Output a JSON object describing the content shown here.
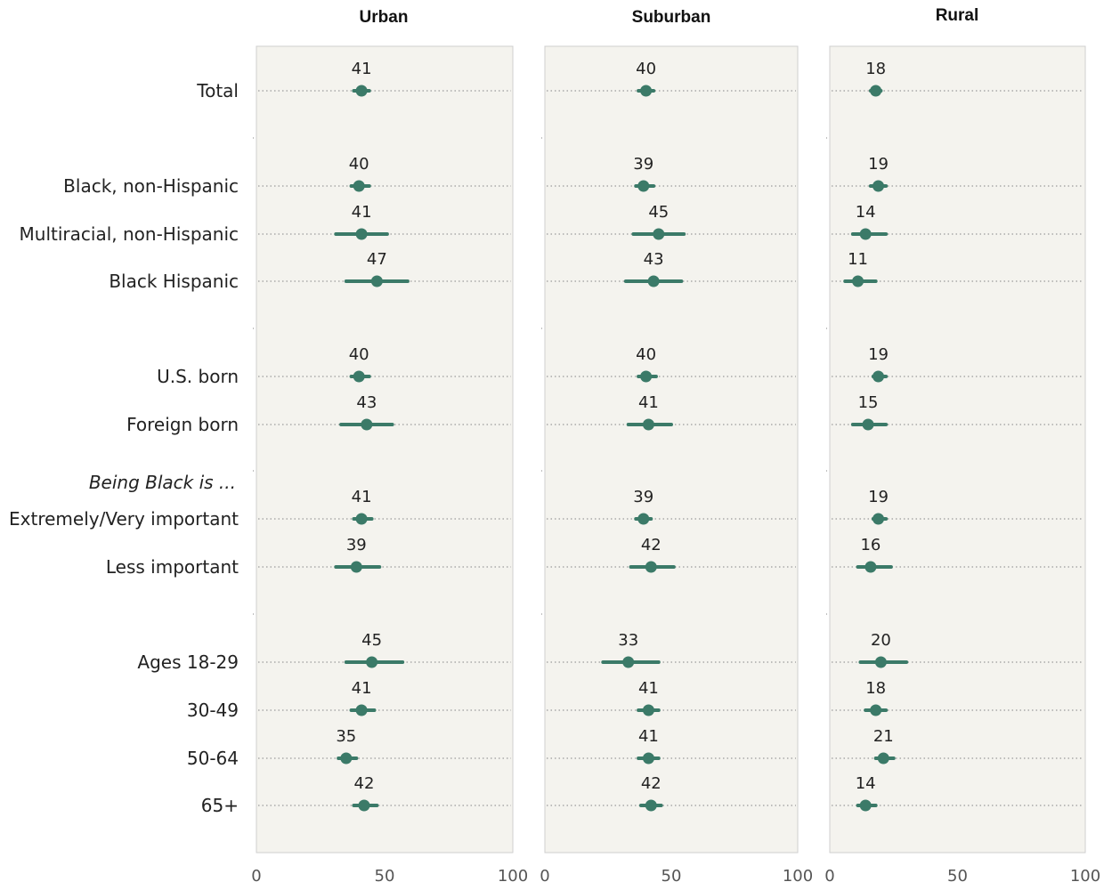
{
  "chart_data": {
    "type": "scatter",
    "xlim": [
      0,
      100
    ],
    "x_ticks": [
      "0",
      "50",
      "100"
    ],
    "panels": [
      "Urban",
      "Suburban",
      "Rural"
    ],
    "section_header": "Being Black is ...",
    "rows": [
      {
        "label": "Total",
        "values": [
          41,
          40,
          18
        ],
        "intervals": [
          [
            38,
            44
          ],
          [
            37,
            43
          ],
          [
            16,
            20
          ]
        ]
      },
      {
        "label": "Black, non-Hispanic",
        "values": [
          40,
          39,
          19
        ],
        "intervals": [
          [
            37,
            44
          ],
          [
            36,
            43
          ],
          [
            16,
            22
          ]
        ]
      },
      {
        "label": "Multiracial, non-Hispanic",
        "values": [
          41,
          45,
          14
        ],
        "intervals": [
          [
            31,
            51
          ],
          [
            35,
            55
          ],
          [
            9,
            22
          ]
        ]
      },
      {
        "label": "Black Hispanic",
        "values": [
          47,
          43,
          11
        ],
        "intervals": [
          [
            35,
            59
          ],
          [
            32,
            54
          ],
          [
            6,
            18
          ]
        ]
      },
      {
        "label": "U.S. born",
        "values": [
          40,
          40,
          19
        ],
        "intervals": [
          [
            37,
            44
          ],
          [
            37,
            44
          ],
          [
            17,
            22
          ]
        ]
      },
      {
        "label": "Foreign born",
        "values": [
          43,
          41,
          15
        ],
        "intervals": [
          [
            33,
            53
          ],
          [
            33,
            50
          ],
          [
            9,
            22
          ]
        ]
      },
      {
        "label": "Extremely/Very important",
        "values": [
          41,
          39,
          19
        ],
        "intervals": [
          [
            38,
            45
          ],
          [
            36,
            42
          ],
          [
            17,
            22
          ]
        ]
      },
      {
        "label": "Less important",
        "values": [
          39,
          42,
          16
        ],
        "intervals": [
          [
            31,
            48
          ],
          [
            34,
            51
          ],
          [
            11,
            24
          ]
        ]
      },
      {
        "label": "Ages 18-29",
        "values": [
          45,
          33,
          20
        ],
        "intervals": [
          [
            35,
            57
          ],
          [
            23,
            45
          ],
          [
            12,
            30
          ]
        ]
      },
      {
        "label": "30-49",
        "values": [
          41,
          41,
          18
        ],
        "intervals": [
          [
            37,
            46
          ],
          [
            37,
            45
          ],
          [
            14,
            22
          ]
        ]
      },
      {
        "label": "50-64",
        "values": [
          35,
          41,
          21
        ],
        "intervals": [
          [
            32,
            39
          ],
          [
            37,
            45
          ],
          [
            18,
            25
          ]
        ]
      },
      {
        "label": "65+",
        "values": [
          42,
          42,
          14
        ],
        "intervals": [
          [
            38,
            47
          ],
          [
            38,
            46
          ],
          [
            11,
            18
          ]
        ]
      }
    ],
    "colors": {
      "point": "#3b7a68",
      "panel_background": "#f4f3ee",
      "panel_border": "#cfcfcf",
      "dotted_line": "#9a9a9a"
    }
  }
}
